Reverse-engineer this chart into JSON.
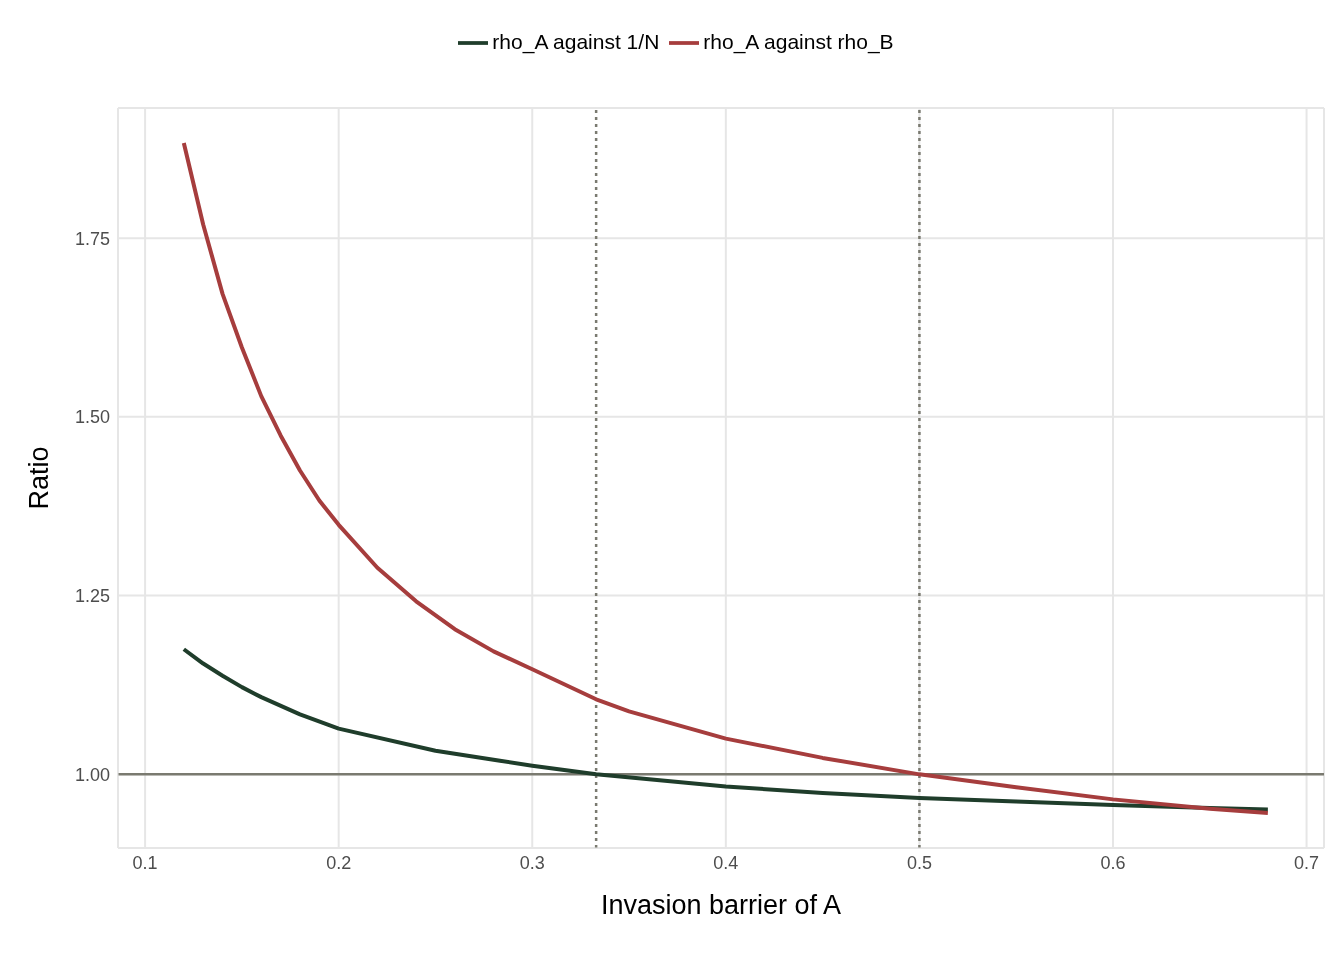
{
  "chart_data": {
    "type": "line",
    "xlabel": "Invasion barrier of A",
    "ylabel": "Ratio",
    "series": [
      {
        "name": "rho_A against 1/N",
        "color": "#1f3d2b",
        "x": [
          0.12,
          0.13,
          0.14,
          0.15,
          0.16,
          0.18,
          0.2,
          0.25,
          0.3,
          0.333,
          0.4,
          0.45,
          0.5,
          0.55,
          0.6,
          0.65,
          0.68
        ],
        "values": [
          1.175,
          1.155,
          1.138,
          1.122,
          1.108,
          1.084,
          1.064,
          1.033,
          1.012,
          1.0,
          0.983,
          0.974,
          0.967,
          0.962,
          0.957,
          0.953,
          0.951
        ]
      },
      {
        "name": "rho_A against rho_B",
        "color": "#a63d3d",
        "x": [
          0.12,
          0.13,
          0.14,
          0.15,
          0.16,
          0.17,
          0.18,
          0.19,
          0.2,
          0.22,
          0.24,
          0.26,
          0.28,
          0.3,
          0.333,
          0.35,
          0.4,
          0.45,
          0.5,
          0.55,
          0.6,
          0.65,
          0.68
        ],
        "values": [
          1.883,
          1.769,
          1.672,
          1.597,
          1.529,
          1.474,
          1.425,
          1.383,
          1.349,
          1.289,
          1.242,
          1.203,
          1.172,
          1.147,
          1.105,
          1.088,
          1.05,
          1.023,
          1.0,
          0.982,
          0.965,
          0.952,
          0.946
        ]
      }
    ],
    "xlim": [
      0.086,
      0.709
    ],
    "xticks": [
      0.1,
      0.2,
      0.3,
      0.4,
      0.5,
      0.6,
      0.7
    ],
    "ylim": [
      0.897,
      1.932
    ],
    "yticks": [
      {
        "value": 1,
        "label": "1.00"
      },
      {
        "value": 1.25,
        "label": "1.25"
      },
      {
        "value": 1.5,
        "label": "1.50"
      },
      {
        "value": 1.75,
        "label": "1.75"
      }
    ],
    "ref_lines": [
      {
        "axis": "y",
        "value": 1,
        "color": "#7a7a70",
        "line_style": "solid"
      },
      {
        "axis": "x",
        "value": 0.333,
        "color": "#7a7a70",
        "line_style": "dotted"
      },
      {
        "axis": "x",
        "value": 0.5,
        "color": "#7a7a70",
        "line_style": "dotted"
      }
    ],
    "grid": true,
    "legend": "top",
    "marker": "none",
    "line_style": "solid"
  }
}
